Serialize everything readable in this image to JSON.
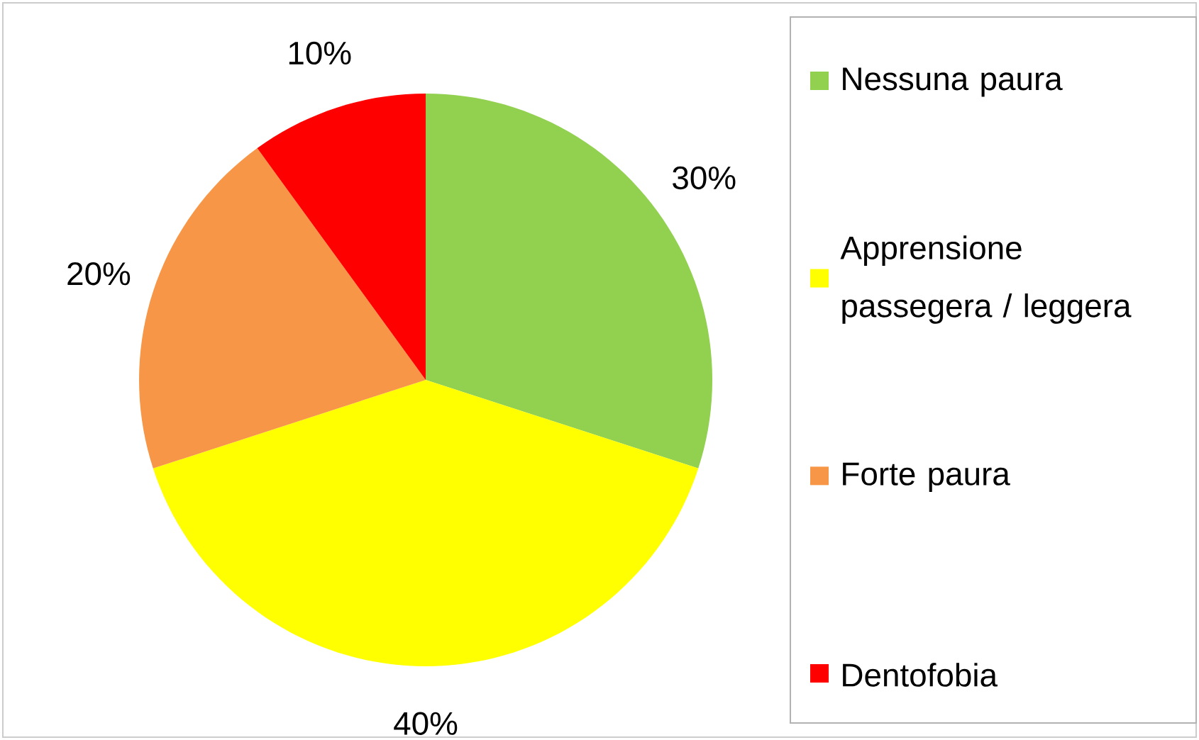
{
  "chart_data": {
    "type": "pie",
    "categories": [
      "Nessuna paura",
      "Apprensione passegera / leggera",
      "Forte paura",
      "Dentofobia"
    ],
    "values": [
      30,
      40,
      20,
      10
    ],
    "colors": [
      "#92d050",
      "#ffff00",
      "#f79646",
      "#ff0000"
    ],
    "value_labels": [
      "30%",
      "40%",
      "20%",
      "10%"
    ],
    "legend": "right"
  }
}
